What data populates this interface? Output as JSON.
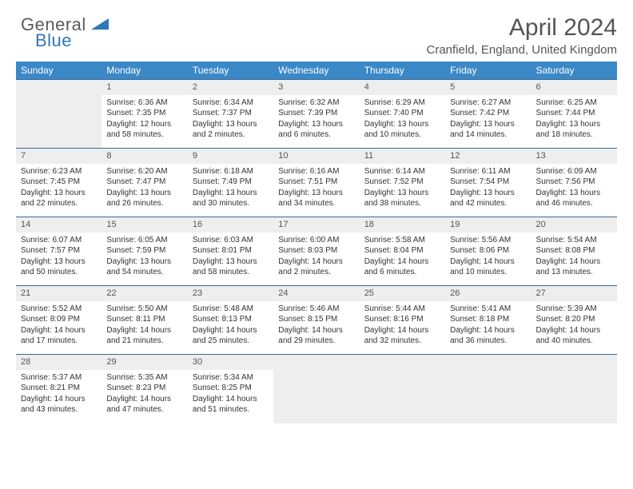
{
  "brand": {
    "part1": "General",
    "part2": "Blue"
  },
  "title": "April 2024",
  "location": "Cranfield, England, United Kingdom",
  "colors": {
    "header_bg": "#3b88c7",
    "header_text": "#ffffff",
    "row_border": "#3b6a95",
    "daynum_bg": "#eeeeee",
    "body_text": "#333333",
    "brand_gray": "#5b5b5b",
    "brand_blue": "#2e77b8"
  },
  "weekdays": [
    "Sunday",
    "Monday",
    "Tuesday",
    "Wednesday",
    "Thursday",
    "Friday",
    "Saturday"
  ],
  "weeks": [
    [
      null,
      {
        "n": "1",
        "sr": "Sunrise: 6:36 AM",
        "ss": "Sunset: 7:35 PM",
        "d1": "Daylight: 12 hours",
        "d2": "and 58 minutes."
      },
      {
        "n": "2",
        "sr": "Sunrise: 6:34 AM",
        "ss": "Sunset: 7:37 PM",
        "d1": "Daylight: 13 hours",
        "d2": "and 2 minutes."
      },
      {
        "n": "3",
        "sr": "Sunrise: 6:32 AM",
        "ss": "Sunset: 7:39 PM",
        "d1": "Daylight: 13 hours",
        "d2": "and 6 minutes."
      },
      {
        "n": "4",
        "sr": "Sunrise: 6:29 AM",
        "ss": "Sunset: 7:40 PM",
        "d1": "Daylight: 13 hours",
        "d2": "and 10 minutes."
      },
      {
        "n": "5",
        "sr": "Sunrise: 6:27 AM",
        "ss": "Sunset: 7:42 PM",
        "d1": "Daylight: 13 hours",
        "d2": "and 14 minutes."
      },
      {
        "n": "6",
        "sr": "Sunrise: 6:25 AM",
        "ss": "Sunset: 7:44 PM",
        "d1": "Daylight: 13 hours",
        "d2": "and 18 minutes."
      }
    ],
    [
      {
        "n": "7",
        "sr": "Sunrise: 6:23 AM",
        "ss": "Sunset: 7:45 PM",
        "d1": "Daylight: 13 hours",
        "d2": "and 22 minutes."
      },
      {
        "n": "8",
        "sr": "Sunrise: 6:20 AM",
        "ss": "Sunset: 7:47 PM",
        "d1": "Daylight: 13 hours",
        "d2": "and 26 minutes."
      },
      {
        "n": "9",
        "sr": "Sunrise: 6:18 AM",
        "ss": "Sunset: 7:49 PM",
        "d1": "Daylight: 13 hours",
        "d2": "and 30 minutes."
      },
      {
        "n": "10",
        "sr": "Sunrise: 6:16 AM",
        "ss": "Sunset: 7:51 PM",
        "d1": "Daylight: 13 hours",
        "d2": "and 34 minutes."
      },
      {
        "n": "11",
        "sr": "Sunrise: 6:14 AM",
        "ss": "Sunset: 7:52 PM",
        "d1": "Daylight: 13 hours",
        "d2": "and 38 minutes."
      },
      {
        "n": "12",
        "sr": "Sunrise: 6:11 AM",
        "ss": "Sunset: 7:54 PM",
        "d1": "Daylight: 13 hours",
        "d2": "and 42 minutes."
      },
      {
        "n": "13",
        "sr": "Sunrise: 6:09 AM",
        "ss": "Sunset: 7:56 PM",
        "d1": "Daylight: 13 hours",
        "d2": "and 46 minutes."
      }
    ],
    [
      {
        "n": "14",
        "sr": "Sunrise: 6:07 AM",
        "ss": "Sunset: 7:57 PM",
        "d1": "Daylight: 13 hours",
        "d2": "and 50 minutes."
      },
      {
        "n": "15",
        "sr": "Sunrise: 6:05 AM",
        "ss": "Sunset: 7:59 PM",
        "d1": "Daylight: 13 hours",
        "d2": "and 54 minutes."
      },
      {
        "n": "16",
        "sr": "Sunrise: 6:03 AM",
        "ss": "Sunset: 8:01 PM",
        "d1": "Daylight: 13 hours",
        "d2": "and 58 minutes."
      },
      {
        "n": "17",
        "sr": "Sunrise: 6:00 AM",
        "ss": "Sunset: 8:03 PM",
        "d1": "Daylight: 14 hours",
        "d2": "and 2 minutes."
      },
      {
        "n": "18",
        "sr": "Sunrise: 5:58 AM",
        "ss": "Sunset: 8:04 PM",
        "d1": "Daylight: 14 hours",
        "d2": "and 6 minutes."
      },
      {
        "n": "19",
        "sr": "Sunrise: 5:56 AM",
        "ss": "Sunset: 8:06 PM",
        "d1": "Daylight: 14 hours",
        "d2": "and 10 minutes."
      },
      {
        "n": "20",
        "sr": "Sunrise: 5:54 AM",
        "ss": "Sunset: 8:08 PM",
        "d1": "Daylight: 14 hours",
        "d2": "and 13 minutes."
      }
    ],
    [
      {
        "n": "21",
        "sr": "Sunrise: 5:52 AM",
        "ss": "Sunset: 8:09 PM",
        "d1": "Daylight: 14 hours",
        "d2": "and 17 minutes."
      },
      {
        "n": "22",
        "sr": "Sunrise: 5:50 AM",
        "ss": "Sunset: 8:11 PM",
        "d1": "Daylight: 14 hours",
        "d2": "and 21 minutes."
      },
      {
        "n": "23",
        "sr": "Sunrise: 5:48 AM",
        "ss": "Sunset: 8:13 PM",
        "d1": "Daylight: 14 hours",
        "d2": "and 25 minutes."
      },
      {
        "n": "24",
        "sr": "Sunrise: 5:46 AM",
        "ss": "Sunset: 8:15 PM",
        "d1": "Daylight: 14 hours",
        "d2": "and 29 minutes."
      },
      {
        "n": "25",
        "sr": "Sunrise: 5:44 AM",
        "ss": "Sunset: 8:16 PM",
        "d1": "Daylight: 14 hours",
        "d2": "and 32 minutes."
      },
      {
        "n": "26",
        "sr": "Sunrise: 5:41 AM",
        "ss": "Sunset: 8:18 PM",
        "d1": "Daylight: 14 hours",
        "d2": "and 36 minutes."
      },
      {
        "n": "27",
        "sr": "Sunrise: 5:39 AM",
        "ss": "Sunset: 8:20 PM",
        "d1": "Daylight: 14 hours",
        "d2": "and 40 minutes."
      }
    ],
    [
      {
        "n": "28",
        "sr": "Sunrise: 5:37 AM",
        "ss": "Sunset: 8:21 PM",
        "d1": "Daylight: 14 hours",
        "d2": "and 43 minutes."
      },
      {
        "n": "29",
        "sr": "Sunrise: 5:35 AM",
        "ss": "Sunset: 8:23 PM",
        "d1": "Daylight: 14 hours",
        "d2": "and 47 minutes."
      },
      {
        "n": "30",
        "sr": "Sunrise: 5:34 AM",
        "ss": "Sunset: 8:25 PM",
        "d1": "Daylight: 14 hours",
        "d2": "and 51 minutes."
      },
      null,
      null,
      null,
      null
    ]
  ]
}
